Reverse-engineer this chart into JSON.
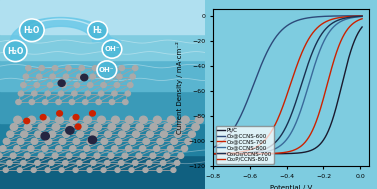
{
  "xlabel": "Potential / V",
  "ylabel": "Current Density / mA·cm⁻²",
  "xlim": [
    -0.8,
    0.05
  ],
  "ylim": [
    -120,
    5
  ],
  "yticks": [
    0,
    -20,
    -40,
    -60,
    -80,
    -100,
    -120
  ],
  "xticks": [
    -0.8,
    -0.6,
    -0.4,
    -0.2,
    0.0
  ],
  "curves": [
    {
      "label": "Pt/C",
      "x0": -0.1,
      "steep": 22,
      "scale": 110,
      "color": "#1a1a2e",
      "lw": 1.0
    },
    {
      "label": "Co@CCNS-600",
      "x0": -0.58,
      "steep": 14,
      "scale": 110,
      "color": "#2d4a7a",
      "lw": 1.0
    },
    {
      "label": "Co@CCNS-700",
      "x0": -0.38,
      "steep": 16,
      "scale": 110,
      "color": "#cc2200",
      "lw": 1.0
    },
    {
      "label": "Co@CCNS-800",
      "x0": -0.28,
      "steep": 18,
      "scale": 110,
      "color": "#3a6a9a",
      "lw": 1.0
    },
    {
      "label": "Co₃O₄/CCNS-700",
      "x0": -0.32,
      "steep": 17,
      "scale": 110,
      "color": "#1a3050",
      "lw": 1.0
    },
    {
      "label": "Co₂P/CCNS-800",
      "x0": -0.18,
      "steep": 20,
      "scale": 110,
      "color": "#cc2200",
      "lw": 1.0
    }
  ],
  "ocean_colors": [
    "#b8e8f5",
    "#80cce0",
    "#5ab5d0",
    "#3a9ab8",
    "#2080a0",
    "#106080"
  ],
  "bubble_color": "#4ab8d8",
  "bubble_edge": "#ffffff",
  "arrow_color": "#60c0e0",
  "atom_color_dark": "#252540",
  "atom_color_red": "#cc2200",
  "sheet_color": "#909090",
  "plot_box_color": "#000000",
  "legend_fontsize": 4.0,
  "tick_fontsize": 4.5,
  "label_fontsize": 5.0
}
